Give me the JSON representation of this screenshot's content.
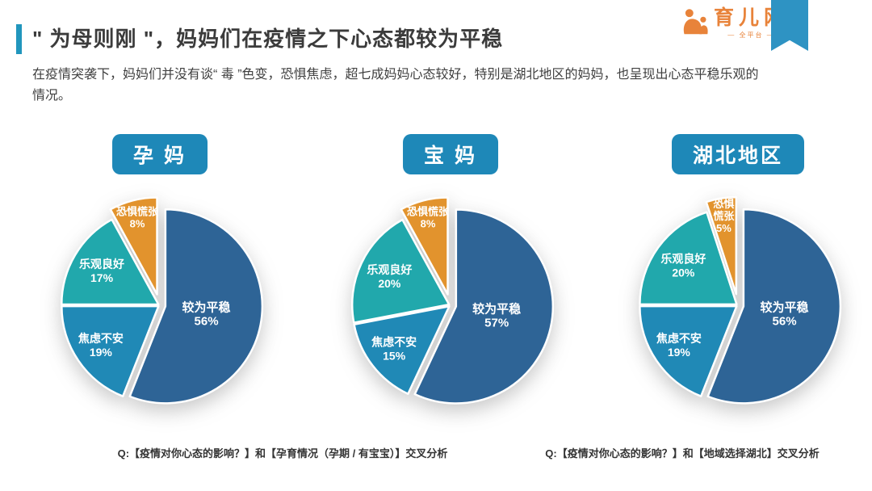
{
  "header": {
    "title": "\" 为母则刚 \"，妈妈们在疫情之下心态都较为平稳",
    "subtitle": "在疫情突袭下，妈妈们并没有谈“ 毒 ”色变，恐惧焦虑，超七成妈妈心态较好，特别是湖北地区的妈妈，也呈现出心态平稳乐观的情况。"
  },
  "logo": {
    "name": "育儿网",
    "tagline": "— 全平台 —"
  },
  "colors": {
    "accent": "#2196bd",
    "ribbon": "#2e93c3",
    "badge": "#1e88b8",
    "logo_orange": "#e8833a"
  },
  "chart_data": [
    {
      "type": "pie",
      "title": "孕 妈",
      "legend_position": "none",
      "slices": [
        {
          "label": "较为平稳",
          "value": 56,
          "color": "#2E6496",
          "label_lines": [
            "较为平稳",
            "56%"
          ]
        },
        {
          "label": "焦虑不安",
          "value": 19,
          "color": "#2089B6",
          "label_lines": [
            "焦虑不安",
            "19%"
          ]
        },
        {
          "label": "乐观良好",
          "value": 17,
          "color": "#21A8AC",
          "label_lines": [
            "乐观良好",
            "17%"
          ]
        },
        {
          "label": "恐惧慌张",
          "value": 8,
          "color": "#E2932D",
          "label_lines": [
            "恐惧慌张",
            "8%"
          ]
        }
      ]
    },
    {
      "type": "pie",
      "title": "宝 妈",
      "legend_position": "none",
      "slices": [
        {
          "label": "较为平稳",
          "value": 57,
          "color": "#2E6496",
          "label_lines": [
            "较为平稳",
            "57%"
          ]
        },
        {
          "label": "焦虑不安",
          "value": 15,
          "color": "#2089B6",
          "label_lines": [
            "焦虑不安",
            "15%"
          ]
        },
        {
          "label": "乐观良好",
          "value": 20,
          "color": "#21A8AC",
          "label_lines": [
            "乐观良好",
            "20%"
          ]
        },
        {
          "label": "恐惧慌张",
          "value": 8,
          "color": "#E2932D",
          "label_lines": [
            "恐惧慌张",
            "8%"
          ]
        }
      ]
    },
    {
      "type": "pie",
      "title": "湖北地区",
      "legend_position": "none",
      "slices": [
        {
          "label": "较为平稳",
          "value": 56,
          "color": "#2E6496",
          "label_lines": [
            "较为平稳",
            "56%"
          ]
        },
        {
          "label": "焦虑不安",
          "value": 19,
          "color": "#2089B6",
          "label_lines": [
            "焦虑不安",
            "19%"
          ]
        },
        {
          "label": "乐观良好",
          "value": 20,
          "color": "#21A8AC",
          "label_lines": [
            "乐观良好",
            "20%"
          ]
        },
        {
          "label": "恐惧慌张",
          "value": 5,
          "color": "#E2932D",
          "label_lines": [
            "恐惧",
            "慌张",
            "5%"
          ]
        }
      ]
    }
  ],
  "captions": [
    "Q:【疫情对你心态的影响？】和【孕育情况（孕期 / 有宝宝）】交叉分析",
    "Q:【疫情对你心态的影响？】和【地域选择湖北】交叉分析"
  ]
}
